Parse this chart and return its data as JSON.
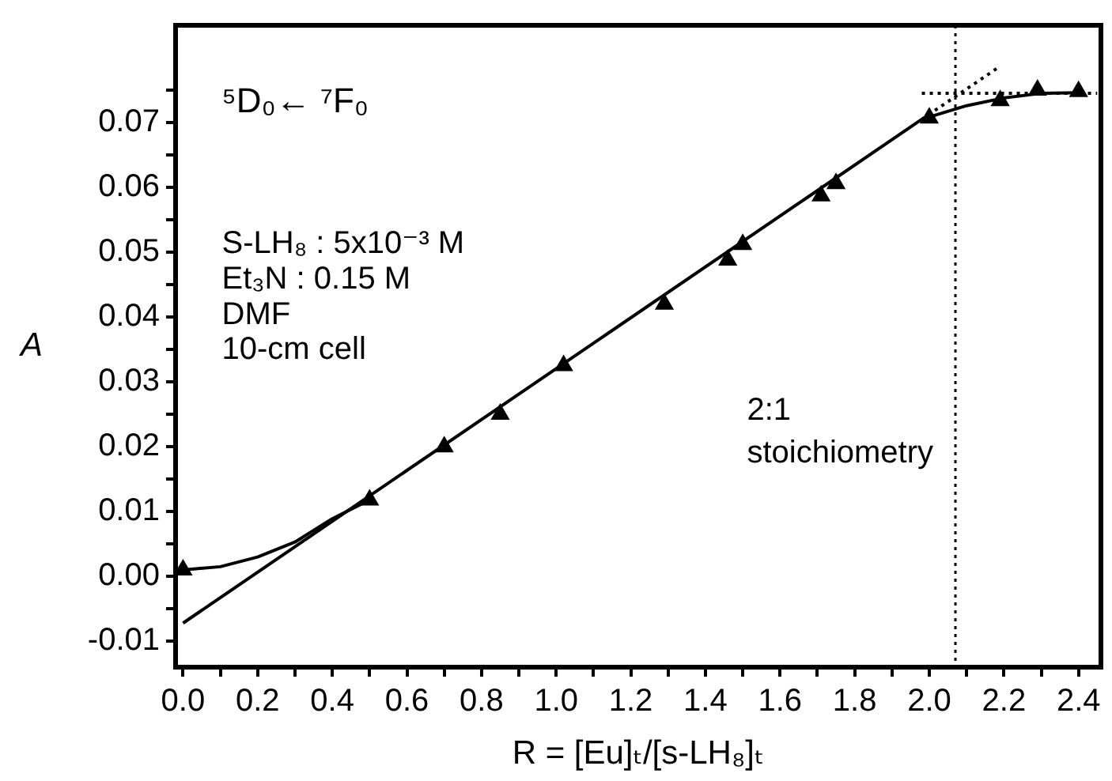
{
  "chart_data": {
    "type": "scatter",
    "xlabel": "R = [Eu]ₜ/[s-LH₈]ₜ",
    "ylabel": "A",
    "xlim": [
      -0.02,
      2.46
    ],
    "ylim": [
      -0.014,
      0.085
    ],
    "xticks": [
      {
        "value": 0,
        "label": "0.0"
      },
      {
        "value": 0.1,
        "label": null
      },
      0.2,
      {
        "value": 0.3,
        "label": null
      },
      0.4,
      {
        "value": 0.5,
        "label": null
      },
      0.6,
      {
        "value": 0.7,
        "label": null
      },
      0.8,
      {
        "value": 0.9,
        "label": null
      },
      {
        "value": 1,
        "label": "1.0"
      },
      {
        "value": 1.1,
        "label": null
      },
      1.2,
      {
        "value": 1.3,
        "label": null
      },
      1.4,
      {
        "value": 1.5,
        "label": null
      },
      1.6,
      {
        "value": 1.7,
        "label": null
      },
      1.8,
      {
        "value": 1.9,
        "label": null
      },
      {
        "value": 2,
        "label": "2.0"
      },
      {
        "value": 2.1,
        "label": null
      },
      2.2,
      {
        "value": 2.3,
        "label": null
      },
      2.4
    ],
    "yticks": [
      -0.01,
      {
        "value": -0.005,
        "label": null
      },
      {
        "value": 0,
        "label": "0.00"
      },
      {
        "value": 0.005,
        "label": null
      },
      0.01,
      {
        "value": 0.015,
        "label": null
      },
      0.02,
      {
        "value": 0.025,
        "label": null
      },
      0.03,
      {
        "value": 0.035,
        "label": null
      },
      0.04,
      {
        "value": 0.045,
        "label": null
      },
      0.05,
      {
        "value": 0.055,
        "label": null
      },
      0.06,
      {
        "value": 0.065,
        "label": null
      },
      0.07,
      {
        "value": 0.075,
        "label": null
      }
    ],
    "grid": false,
    "legend": false,
    "series": [
      {
        "color": "#000000",
        "marker": "triangle",
        "x": [
          0,
          0.5,
          0.7,
          0.85,
          1.02,
          1.29,
          1.46,
          1.5,
          1.71,
          1.75,
          2.0,
          2.19,
          2.29,
          2.4
        ],
        "values": [
          0.001,
          0.0118,
          0.02,
          0.025,
          0.0325,
          0.042,
          0.0488,
          0.0512,
          0.0587,
          0.0606,
          0.0707,
          0.0734,
          0.075,
          0.0748
        ]
      },
      {
        "type": "line",
        "color": "#000000",
        "marker": "none",
        "x": [
          0,
          0.1,
          0.2,
          0.3,
          0.4,
          0.5
        ],
        "values": [
          0.001,
          0.0015,
          0.003,
          0.0053,
          0.0089,
          0.0118
        ]
      },
      {
        "type": "line",
        "color": "#000000",
        "marker": "none",
        "x": [
          0,
          1.98
        ],
        "values": [
          -0.0072,
          0.0705
        ]
      },
      {
        "type": "line",
        "color": "#000000",
        "marker": "none",
        "line_style": "dotted",
        "x": [
          1.98,
          2.18
        ],
        "values": [
          0.0705,
          0.0783
        ]
      },
      {
        "type": "line",
        "color": "#000000",
        "marker": "none",
        "x": [
          1.98,
          2.1,
          2.2,
          2.3,
          2.41
        ],
        "values": [
          0.0705,
          0.0726,
          0.0738,
          0.0745,
          0.0746
        ]
      },
      {
        "type": "line",
        "color": "#000000",
        "marker": "none",
        "line_style": "dotted",
        "x": [
          1.98,
          2.45
        ],
        "values": [
          0.0745,
          0.0745
        ]
      }
    ],
    "ref_lines": [
      {
        "axis": "x",
        "value": 2.07,
        "label": "2:1\nstoichiometry",
        "line_style": "dotted",
        "color": "#000000"
      }
    ],
    "annotations": [
      "⁵D₀← ⁷F₀",
      "S-LH₈ : 5x10⁻³ M",
      "Et₃N : 0.15 M",
      "DMF",
      "10-cm cell"
    ]
  }
}
